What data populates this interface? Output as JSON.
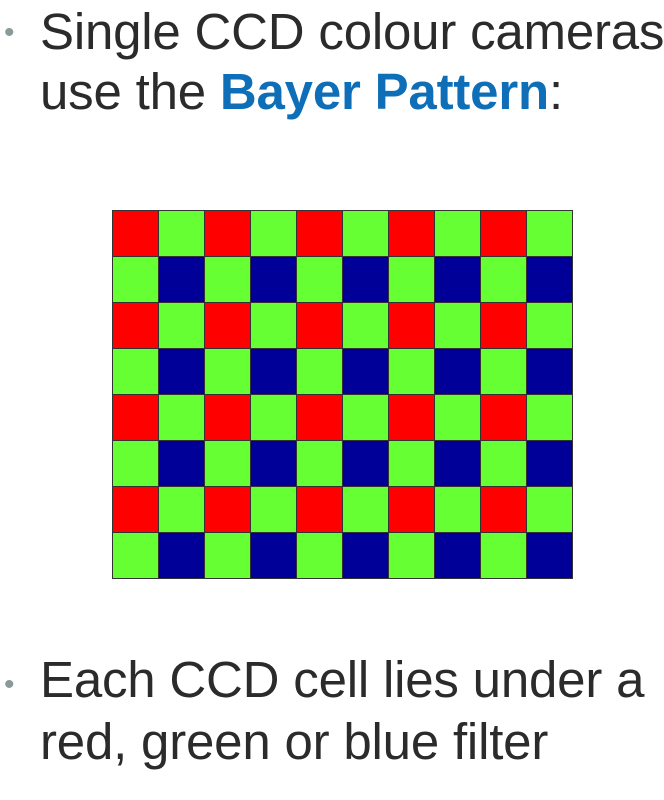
{
  "bullets": [
    {
      "line1": "Single CCD colour cameras",
      "line2_prefix": "use the ",
      "line2_highlight": "Bayer Pattern",
      "line2_suffix": ":"
    },
    {
      "line1": "Each CCD cell lies under a",
      "line2": "red, green or blue filter"
    }
  ],
  "bullet_symbol": "•",
  "bayer_grid": {
    "rows": 8,
    "cols": 10,
    "row_patterns": [
      [
        "R",
        "G",
        "R",
        "G",
        "R",
        "G",
        "R",
        "G",
        "R",
        "G"
      ],
      [
        "G",
        "B",
        "G",
        "B",
        "G",
        "B",
        "G",
        "B",
        "G",
        "B"
      ]
    ],
    "colors": {
      "R": "#ff0000",
      "G": "#66ff33",
      "B": "#000099"
    },
    "border_color": "#333333"
  },
  "colors": {
    "text": "#2b2b2b",
    "highlight": "#0e6fb8",
    "bullet": "#8a9a9a"
  }
}
